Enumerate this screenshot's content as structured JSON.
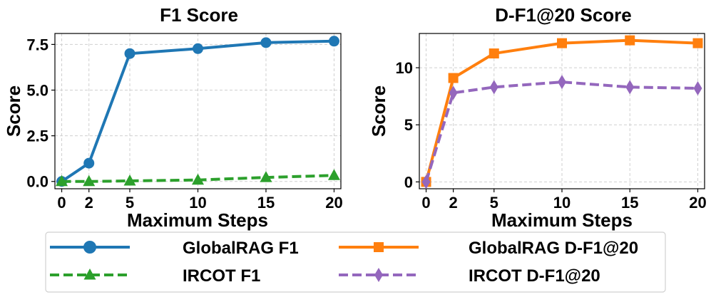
{
  "chart_data": [
    {
      "type": "line",
      "title": "F1 Score",
      "xlabel": "Maximum Steps",
      "ylabel": "Score",
      "x": [
        0,
        2,
        5,
        10,
        15,
        20
      ],
      "xticks": [
        "0",
        "2",
        "5",
        "10",
        "15",
        "20"
      ],
      "yticks": [
        "0.0",
        "2.5",
        "5.0",
        "7.5"
      ],
      "ytick_values": [
        0,
        2.5,
        5.0,
        7.5
      ],
      "xlim": [
        -0.5,
        20.5
      ],
      "ylim": [
        -0.4,
        8.1
      ],
      "grid": true,
      "series": [
        {
          "name": "GlobalRAG F1",
          "values": [
            0.0,
            1.0,
            7.0,
            7.27,
            7.6,
            7.68
          ],
          "color": "#1f77b4",
          "marker": "circle",
          "dash": "solid"
        },
        {
          "name": "IRCOT F1",
          "values": [
            0.0,
            0.0,
            0.03,
            0.08,
            0.22,
            0.33
          ],
          "color": "#2ca02c",
          "marker": "triangle",
          "dash": "dashed"
        }
      ]
    },
    {
      "type": "line",
      "title": "D-F1@20 Score",
      "xlabel": "Maximum Steps",
      "ylabel": "Score",
      "x": [
        0,
        2,
        5,
        10,
        15,
        20
      ],
      "xticks": [
        "0",
        "2",
        "5",
        "10",
        "15",
        "20"
      ],
      "yticks": [
        "0",
        "5",
        "10"
      ],
      "ytick_values": [
        0,
        5,
        10
      ],
      "xlim": [
        -0.5,
        20.5
      ],
      "ylim": [
        -0.6,
        13.0
      ],
      "grid": true,
      "series": [
        {
          "name": "GlobalRAG D-F1@20",
          "values": [
            0.0,
            9.1,
            11.25,
            12.15,
            12.4,
            12.15
          ],
          "color": "#ff7f0e",
          "marker": "square",
          "dash": "solid"
        },
        {
          "name": "IRCOT D-F1@20",
          "values": [
            0.0,
            7.8,
            8.3,
            8.75,
            8.3,
            8.2
          ],
          "color": "#9467bd",
          "marker": "diamond",
          "dash": "dashed"
        }
      ]
    }
  ],
  "legend": {
    "placement": "bottom-center",
    "entries": [
      {
        "label": "GlobalRAG F1",
        "color": "#1f77b4",
        "marker": "circle",
        "dash": "solid"
      },
      {
        "label": "GlobalRAG D-F1@20",
        "color": "#ff7f0e",
        "marker": "square",
        "dash": "solid"
      },
      {
        "label": "IRCOT F1",
        "color": "#2ca02c",
        "marker": "triangle",
        "dash": "dashed"
      },
      {
        "label": "IRCOT D-F1@20",
        "color": "#9467bd",
        "marker": "diamond",
        "dash": "dashed"
      }
    ]
  }
}
